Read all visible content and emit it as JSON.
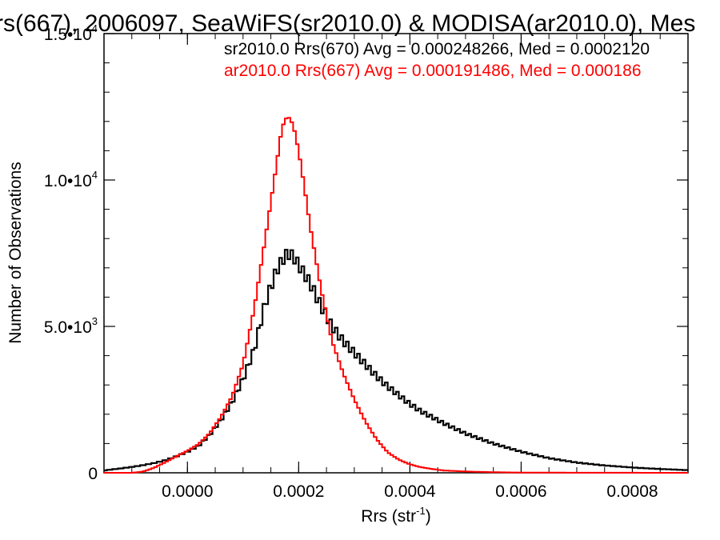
{
  "chart_data": {
    "type": "line",
    "title": "rs(667), 2006097, SeaWiFS(sr2010.0) & MODISA(ar2010.0), Mes",
    "xlabel": "Rrs (str",
    "xlabel_sup": "-1",
    "xlabel_close": ")",
    "ylabel": "Number of Observations",
    "xlim": [
      -0.00015,
      0.0009
    ],
    "ylim": [
      0,
      15000
    ],
    "x_ticks": [
      {
        "value": 0.0,
        "label": "0.0000"
      },
      {
        "value": 0.0002,
        "label": "0.0002"
      },
      {
        "value": 0.0004,
        "label": "0.0004"
      },
      {
        "value": 0.0006,
        "label": "0.0006"
      },
      {
        "value": 0.0008,
        "label": "0.0008"
      }
    ],
    "y_ticks": [
      {
        "value": 0,
        "mant": "0",
        "exp": ""
      },
      {
        "value": 5000,
        "mant": "5.0•10",
        "exp": "3"
      },
      {
        "value": 10000,
        "mant": "1.0•10",
        "exp": "4"
      },
      {
        "value": 15000,
        "mant": "1.5•10",
        "exp": "4"
      }
    ],
    "series": [
      {
        "label": "sr2010.0 Rrs(670) Avg = 0.000248266, Med = 0.0002120",
        "color": "#000000",
        "points": [
          [
            -0.00015,
            80
          ],
          [
            -0.00012,
            150
          ],
          [
            -0.0001,
            200
          ],
          [
            -8e-05,
            260
          ],
          [
            -6e-05,
            330
          ],
          [
            -4e-05,
            430
          ],
          [
            -2e-05,
            560
          ],
          [
            0.0,
            720
          ],
          [
            2e-05,
            920
          ],
          [
            4e-05,
            1300
          ],
          [
            6e-05,
            1800
          ],
          [
            8e-05,
            2400
          ],
          [
            0.0001,
            3200
          ],
          [
            0.00012,
            4200
          ],
          [
            0.00014,
            5800
          ],
          [
            0.00016,
            6900
          ],
          [
            0.00017,
            7250
          ],
          [
            0.00018,
            7500
          ],
          [
            0.00019,
            7400
          ],
          [
            0.0002,
            7100
          ],
          [
            0.00022,
            6500
          ],
          [
            0.00024,
            5700
          ],
          [
            0.00026,
            5000
          ],
          [
            0.00028,
            4500
          ],
          [
            0.0003,
            4100
          ],
          [
            0.00032,
            3700
          ],
          [
            0.00034,
            3300
          ],
          [
            0.00036,
            2950
          ],
          [
            0.00038,
            2650
          ],
          [
            0.0004,
            2350
          ],
          [
            0.00042,
            2100
          ],
          [
            0.00044,
            1900
          ],
          [
            0.00046,
            1700
          ],
          [
            0.00048,
            1520
          ],
          [
            0.0005,
            1340
          ],
          [
            0.00055,
            1000
          ],
          [
            0.0006,
            720
          ],
          [
            0.00065,
            500
          ],
          [
            0.0007,
            350
          ],
          [
            0.00075,
            250
          ],
          [
            0.0008,
            180
          ],
          [
            0.00085,
            130
          ],
          [
            0.0009,
            90
          ]
        ]
      },
      {
        "label": "ar2010.0 Rrs(667) Avg = 0.000191486, Med = 0.000186",
        "color": "#ff0000",
        "points": [
          [
            -0.00015,
            0
          ],
          [
            -0.0001,
            0
          ],
          [
            -8e-05,
            40
          ],
          [
            -6e-05,
            170
          ],
          [
            -4e-05,
            360
          ],
          [
            -2e-05,
            560
          ],
          [
            0.0,
            750
          ],
          [
            2e-05,
            980
          ],
          [
            4e-05,
            1350
          ],
          [
            6e-05,
            1900
          ],
          [
            8e-05,
            2600
          ],
          [
            0.0001,
            3700
          ],
          [
            0.00012,
            5600
          ],
          [
            0.00014,
            8000
          ],
          [
            0.00016,
            10500
          ],
          [
            0.00017,
            11800
          ],
          [
            0.00018,
            12200
          ],
          [
            0.00019,
            11900
          ],
          [
            0.0002,
            11000
          ],
          [
            0.00021,
            9800
          ],
          [
            0.00022,
            8500
          ],
          [
            0.00024,
            6300
          ],
          [
            0.00026,
            4500
          ],
          [
            0.00028,
            3400
          ],
          [
            0.0003,
            2500
          ],
          [
            0.00032,
            1750
          ],
          [
            0.00034,
            1150
          ],
          [
            0.00036,
            700
          ],
          [
            0.00038,
            450
          ],
          [
            0.0004,
            290
          ],
          [
            0.00042,
            190
          ],
          [
            0.00044,
            130
          ],
          [
            0.00046,
            80
          ],
          [
            0.0005,
            45
          ],
          [
            0.00055,
            20
          ],
          [
            0.0006,
            8
          ],
          [
            0.0007,
            3
          ],
          [
            0.0009,
            0
          ]
        ]
      }
    ],
    "grid": false,
    "legend": "top-right text labels"
  }
}
